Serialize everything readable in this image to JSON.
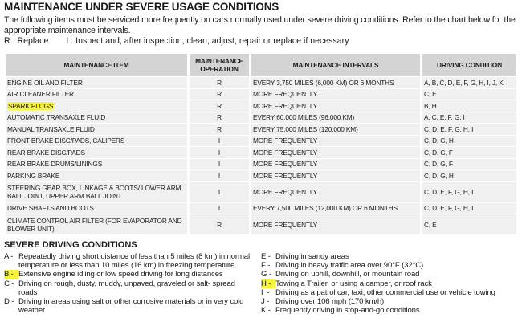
{
  "title": "MAINTENANCE UNDER SEVERE USAGE CONDITIONS",
  "intro": "The following items must be serviced more frequently on cars normally used under severe driving conditions. Refer to the chart below for the appropriate maintenance intervals.",
  "legend": {
    "r": "R : Replace",
    "i": "I : Inspect and, after inspection, clean, adjust, repair or replace if necessary"
  },
  "table": {
    "headers": [
      "MAINTENANCE ITEM",
      "MAINTENANCE OPERATION",
      "MAINTENANCE INTERVALS",
      "DRIVING CONDITION"
    ],
    "rows": [
      [
        "ENGINE OIL AND FILTER",
        "R",
        "EVERY 3,750 MILES (6,000 KM) OR 6 MONTHS",
        "A, B, C, D, E, F, G, H, I, J, K"
      ],
      [
        "AIR CLEANER FILTER",
        "R",
        "MORE FREQUENTLY",
        "C, E"
      ],
      [
        "SPARK PLUGS",
        "R",
        "MORE FREQUENTLY",
        "B, H"
      ],
      [
        "AUTOMATIC TRANSAXLE FLUID",
        "R",
        "EVERY 60,000 MILES (96,000 KM)",
        "A, C, E, F, G, I"
      ],
      [
        "MANUAL TRANSAXLE FLUID",
        "R",
        "EVERY 75,000 MILES (120,000 KM)",
        "C, D, E, F, G, H, I"
      ],
      [
        "FRONT BRAKE DISC/PADS, CALIPERS",
        "I",
        "MORE FREQUENTLY",
        "C, D, G, H"
      ],
      [
        "REAR BRAKE DISC/PADS",
        "I",
        "MORE FREQUENTLY",
        "C, D, G, F"
      ],
      [
        "REAR BRAKE DRUMS/LININGS",
        "I",
        "MORE FREQUENTLY",
        "C, D, G, F"
      ],
      [
        "PARKING BRAKE",
        "I",
        "MORE FREQUENTLY",
        "C, D, G, H"
      ],
      [
        "STEERING GEAR BOX, LINKAGE & BOOTS/ LOWER ARM BALL JOINT, UPPER ARM BALL JOINT",
        "I",
        "MORE FREQUENTLY",
        "C, D, E, F, G, H, I"
      ],
      [
        "DRIVE SHAFTS AND BOOTS",
        "I",
        "EVERY 7,500 MILES (12,000 KM) OR 6 MONTHS",
        "C, D, E, F, G, H, I"
      ],
      [
        "CLIMATE CONTROL AIR FILTER (FOR EVAPORATOR AND BLOWER UNIT)",
        "R",
        "MORE FREQUENTLY",
        "C, E"
      ]
    ]
  },
  "conditions_title": "SEVERE DRIVING CONDITIONS",
  "conditions": [
    {
      "key": "A -",
      "text": "Repeatedly driving short distance of less than 5 miles (8 km) in normal temperature or less than 10 miles (16 km) in freezing temperature"
    },
    {
      "key": "B -",
      "text": "Extensive engine idling or low speed driving for long distances"
    },
    {
      "key": "C -",
      "text": "Driving on rough, dusty, muddy, unpaved, graveled or salt- spread roads"
    },
    {
      "key": "D -",
      "text": "Driving in areas using salt or other corrosive materials or in very cold weather"
    },
    {
      "key": "E -",
      "text": "Driving in sandy areas"
    },
    {
      "key": "F -",
      "text": "Driving in heavy traffic area over 90°F (32°C)"
    },
    {
      "key": "G -",
      "text": "Driving on uphill, downhill, or mountain road"
    },
    {
      "key": "H -",
      "text": "Towing a Trailer, or using a camper, or roof rack"
    },
    {
      "key": "I  -",
      "text": "Driving as a patrol car, taxi, other commercial use or vehicle towing"
    },
    {
      "key": "J -",
      "text": "Driving over 106 mph (170 km/h)"
    },
    {
      "key": "K -",
      "text": "Frequently driving in stop-and-go conditions"
    }
  ],
  "highlight_color": "#f6f33a"
}
